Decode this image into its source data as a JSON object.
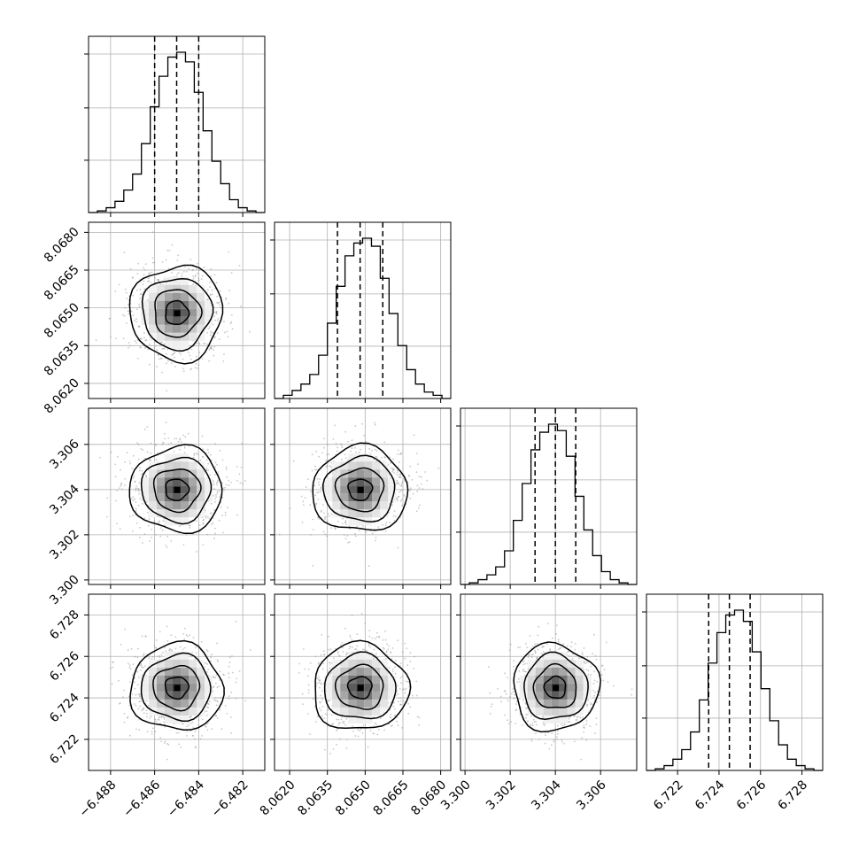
{
  "chart_data": {
    "type": "corner",
    "description_note": "",
    "parameters": [
      {
        "id": "p0",
        "range": [
          -6.489,
          -6.481
        ],
        "center": -6.485,
        "sigma": 0.001,
        "quantiles": [
          -6.486,
          -6.485,
          -6.484
        ],
        "ticks": [
          -6.488,
          -6.486,
          -6.484,
          -6.482
        ],
        "tick_labels": [
          "−6.488",
          "−6.486",
          "−6.484",
          "−6.482"
        ]
      },
      {
        "id": "p1",
        "range": [
          8.0614,
          8.0684
        ],
        "center": 8.0648,
        "sigma": 0.0009,
        "quantiles": [
          8.0639,
          8.0648,
          8.0657
        ],
        "ticks": [
          8.062,
          8.0635,
          8.065,
          8.0665,
          8.068
        ],
        "tick_labels": [
          "8.0620",
          "8.0635",
          "8.0650",
          "8.0665",
          "8.0680"
        ]
      },
      {
        "id": "p2",
        "range": [
          3.2998,
          3.3076
        ],
        "center": 3.304,
        "sigma": 0.0009,
        "quantiles": [
          3.3031,
          3.304,
          3.3049
        ],
        "ticks": [
          3.3,
          3.302,
          3.304,
          3.306
        ],
        "tick_labels": [
          "3.300",
          "3.302",
          "3.304",
          "3.306"
        ]
      },
      {
        "id": "p3",
        "range": [
          6.7205,
          6.729
        ],
        "center": 6.7245,
        "sigma": 0.001,
        "quantiles": [
          6.7235,
          6.7245,
          6.7255
        ],
        "ticks": [
          6.722,
          6.724,
          6.726,
          6.728
        ],
        "tick_labels": [
          "6.722",
          "6.724",
          "6.726",
          "6.728"
        ]
      }
    ],
    "histogram": {
      "bins": 20,
      "normalized_counts": [
        [
          0.0,
          0.01,
          0.03,
          0.07,
          0.14,
          0.24,
          0.43,
          0.66,
          0.85,
          0.97,
          1.0,
          0.94,
          0.75,
          0.51,
          0.32,
          0.18,
          0.08,
          0.03,
          0.01,
          0.0
        ],
        [
          0.0,
          0.02,
          0.05,
          0.09,
          0.15,
          0.27,
          0.47,
          0.7,
          0.89,
          0.97,
          1.0,
          0.95,
          0.75,
          0.53,
          0.33,
          0.18,
          0.09,
          0.04,
          0.02,
          0.0
        ],
        [
          0.0,
          0.01,
          0.03,
          0.06,
          0.11,
          0.21,
          0.4,
          0.63,
          0.84,
          0.95,
          1.0,
          0.96,
          0.8,
          0.55,
          0.34,
          0.18,
          0.08,
          0.03,
          0.01,
          0.0
        ],
        [
          0.0,
          0.01,
          0.03,
          0.07,
          0.13,
          0.24,
          0.44,
          0.67,
          0.86,
          0.97,
          1.0,
          0.93,
          0.74,
          0.51,
          0.31,
          0.16,
          0.07,
          0.03,
          0.01,
          0.0
        ]
      ]
    },
    "contour_levels_sigma": [
      0.5,
      1.0,
      1.5,
      2.0
    ],
    "colors": {
      "line": "#000000",
      "grid": "#b0b0b0",
      "scatter": "#9a9a9a"
    },
    "grid": true,
    "legend": "none",
    "title": "",
    "axis_labels": [
      "",
      "",
      "",
      ""
    ]
  }
}
